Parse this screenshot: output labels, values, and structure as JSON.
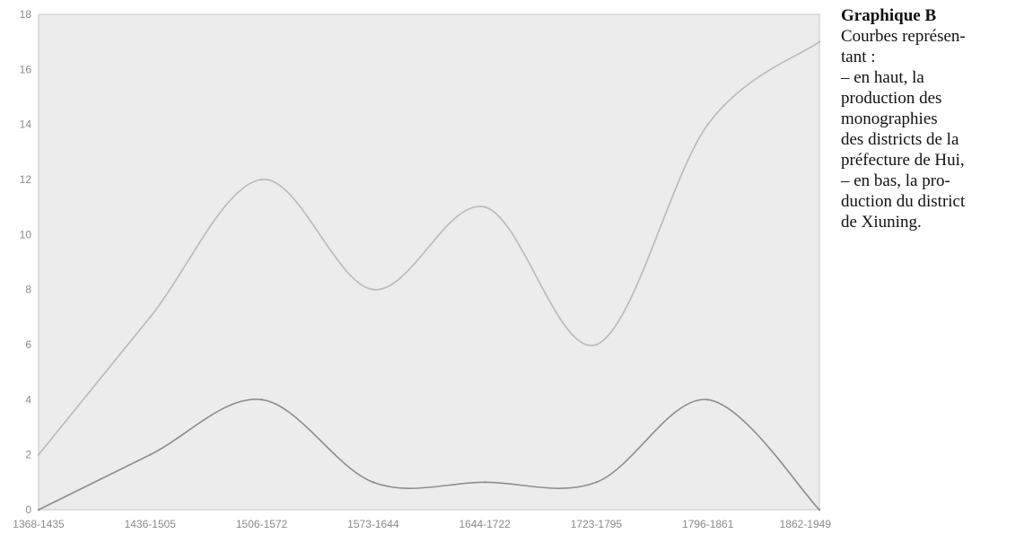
{
  "caption": {
    "title": "Graphique B",
    "lines": [
      "Courbes représen-",
      "tant :",
      "– en haut, la",
      "production des",
      "monographies",
      "des districts de la",
      "préfecture de Hui,",
      "– en bas, la pro-",
      "duction du district",
      "de Xiuning."
    ]
  },
  "chart_data": {
    "type": "line",
    "categories": [
      "1368-1435",
      "1436-1505",
      "1506-1572",
      "1573-1644",
      "1644-1722",
      "1723-1795",
      "1796-1861",
      "1862-1949"
    ],
    "series": [
      {
        "values": [
          2,
          7,
          12,
          8,
          11,
          6,
          14,
          17
        ],
        "color": "#b9b9b9"
      },
      {
        "values": [
          0,
          2,
          4,
          1,
          1,
          1,
          4,
          0
        ],
        "color": "#8d8d8d"
      }
    ],
    "ylim": [
      0,
      18
    ],
    "yticks": [
      0,
      2,
      4,
      6,
      8,
      10,
      12,
      14,
      16,
      18
    ],
    "title": "",
    "xlabel": "",
    "ylabel": "",
    "grid": false,
    "plot_background": "#ececec",
    "smooth": true
  }
}
